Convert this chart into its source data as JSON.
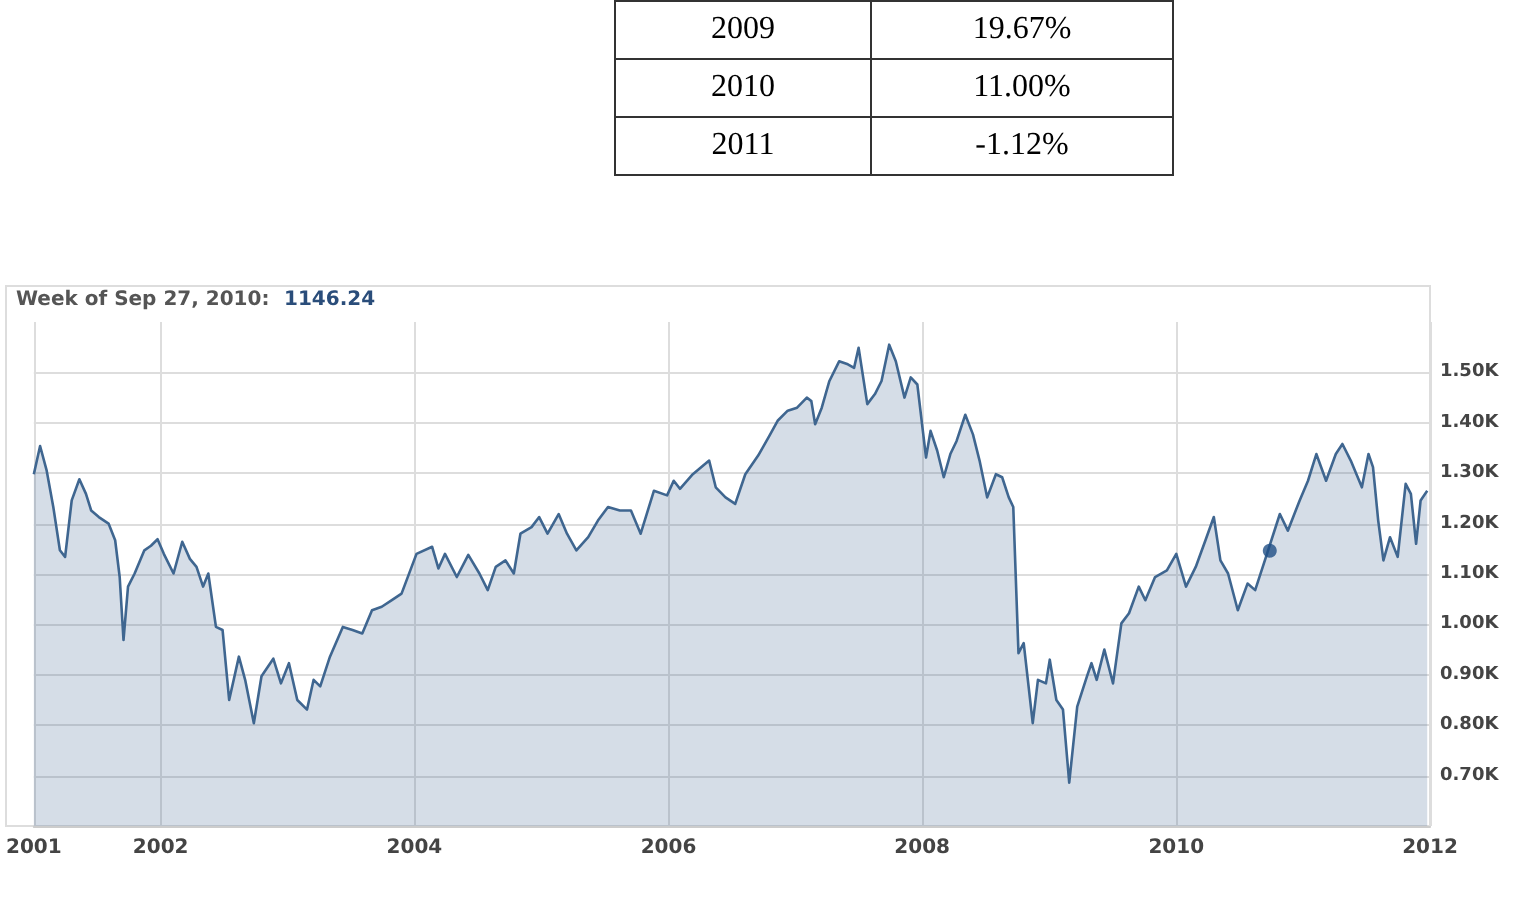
{
  "chart_data": [
    {
      "type": "other",
      "annotations": [
        "2009",
        "19.67%",
        "2010",
        "11.00%",
        "2011",
        "-1.12%"
      ]
    },
    {
      "type": "area",
      "title": "Week of Sep 27, 2010:",
      "annotations": [
        "1146.24"
      ],
      "series": [
        {
          "type": "scatter",
          "color": "#1f4f86",
          "x": [
            "2010-09-27"
          ],
          "values": [
            1146.24
          ]
        },
        {
          "color": "#3f6690",
          "x": [
            "2001-01-01",
            "2001-01-19",
            "2001-02-07",
            "2001-02-26",
            "2001-03-17",
            "2001-04-01",
            "2001-04-20",
            "2001-05-12",
            "2001-05-31",
            "2001-06-15",
            "2001-07-07",
            "2001-08-04",
            "2001-08-23",
            "2001-09-05",
            "2001-09-16",
            "2001-09-29",
            "2001-10-18",
            "2001-11-15",
            "2001-12-04",
            "2001-12-23",
            "2002-01-10",
            "2002-02-07",
            "2002-03-04",
            "2002-03-26",
            "2002-04-14",
            "2002-05-03",
            "2002-05-18",
            "2002-06-09",
            "2002-06-28",
            "2002-07-17",
            "2002-08-14",
            "2002-09-01",
            "2002-09-26",
            "2002-10-18",
            "2002-11-21",
            "2002-12-13",
            "2003-01-05",
            "2003-01-29",
            "2003-02-26",
            "2003-03-17",
            "2003-04-05",
            "2003-05-03",
            "2003-06-09",
            "2003-07-07",
            "2003-08-04",
            "2003-09-01",
            "2003-09-29",
            "2003-10-28",
            "2003-11-25",
            "2004-01-07",
            "2004-02-21",
            "2004-03-10",
            "2004-03-29",
            "2004-05-02",
            "2004-06-04",
            "2004-07-06",
            "2004-07-30",
            "2004-08-22",
            "2004-09-19",
            "2004-10-13",
            "2004-11-01",
            "2004-12-03",
            "2004-12-25",
            "2005-01-18",
            "2005-02-19",
            "2005-03-15",
            "2005-04-11",
            "2005-05-15",
            "2005-06-12",
            "2005-07-11",
            "2005-08-14",
            "2005-09-15",
            "2005-10-13",
            "2005-11-20",
            "2005-12-28",
            "2006-01-16",
            "2006-02-03",
            "2006-03-12",
            "2006-04-28",
            "2006-05-17",
            "2006-06-14",
            "2006-07-12",
            "2006-08-10",
            "2006-09-16",
            "2006-10-19",
            "2006-11-11",
            "2006-12-10",
            "2007-01-06",
            "2007-02-03",
            "2007-02-16",
            "2007-02-27",
            "2007-03-18",
            "2007-04-09",
            "2007-05-07",
            "2007-06-01",
            "2007-06-19",
            "2007-07-02",
            "2007-07-27",
            "2007-08-18",
            "2007-09-06",
            "2007-09-28",
            "2007-10-17",
            "2007-11-11",
            "2007-11-29",
            "2007-12-18",
            "2008-01-12",
            "2008-01-25",
            "2008-02-13",
            "2008-03-03",
            "2008-03-22",
            "2008-04-09",
            "2008-05-04",
            "2008-05-26",
            "2008-06-14",
            "2008-07-06",
            "2008-07-31",
            "2008-08-18",
            "2008-09-06",
            "2008-09-19",
            "2008-10-04",
            "2008-10-19",
            "2008-11-14",
            "2008-11-29",
            "2008-12-22",
            "2009-01-02",
            "2009-01-21",
            "2009-02-09",
            "2009-02-27",
            "2009-03-22",
            "2009-04-19",
            "2009-05-02",
            "2009-05-17",
            "2009-06-08",
            "2009-07-03",
            "2009-07-27",
            "2009-08-18",
            "2009-09-15",
            "2009-10-04",
            "2009-11-01",
            "2009-12-05",
            "2010-01-01",
            "2010-01-29",
            "2010-02-26",
            "2010-03-26",
            "2010-04-19",
            "2010-05-08",
            "2010-05-30",
            "2010-06-27",
            "2010-07-25",
            "2010-08-16",
            "2010-09-19",
            "2010-10-26",
            "2010-11-18",
            "2010-12-22",
            "2011-01-15",
            "2011-02-08",
            "2011-03-08",
            "2011-04-05",
            "2011-04-24",
            "2011-05-18",
            "2011-06-19",
            "2011-07-08",
            "2011-07-21",
            "2011-08-05",
            "2011-08-20",
            "2011-09-08",
            "2011-09-30",
            "2011-10-23",
            "2011-11-07",
            "2011-11-22",
            "2011-12-05",
            "2011-12-24"
          ],
          "values": [
            1298,
            1354,
            1305,
            1233,
            1147,
            1134,
            1246,
            1288,
            1259,
            1226,
            1213,
            1200,
            1167,
            1094,
            969,
            1075,
            1101,
            1147,
            1156,
            1169,
            1140,
            1101,
            1164,
            1130,
            1114,
            1075,
            1101,
            995,
            989,
            850,
            936,
            890,
            804,
            897,
            932,
            883,
            923,
            850,
            831,
            890,
            877,
            936,
            995,
            989,
            982,
            1028,
            1035,
            1048,
            1061,
            1140,
            1154,
            1111,
            1140,
            1094,
            1138,
            1101,
            1068,
            1114,
            1127,
            1101,
            1180,
            1193,
            1213,
            1180,
            1219,
            1180,
            1147,
            1173,
            1206,
            1233,
            1226,
            1226,
            1180,
            1265,
            1256,
            1285,
            1269,
            1298,
            1325,
            1272,
            1252,
            1239,
            1298,
            1335,
            1375,
            1404,
            1424,
            1430,
            1450,
            1443,
            1397,
            1430,
            1483,
            1522,
            1516,
            1509,
            1549,
            1437,
            1457,
            1483,
            1555,
            1522,
            1450,
            1490,
            1476,
            1331,
            1384,
            1345,
            1292,
            1338,
            1364,
            1416,
            1377,
            1325,
            1252,
            1298,
            1292,
            1252,
            1233,
            943,
            963,
            804,
            890,
            883,
            930,
            850,
            831,
            686,
            837,
            897,
            923,
            890,
            950,
            883,
            1002,
            1022,
            1075,
            1048,
            1094,
            1107,
            1140,
            1075,
            1114,
            1167,
            1213,
            1127,
            1101,
            1028,
            1081,
            1068,
            1140,
            1219,
            1186,
            1246,
            1285,
            1338,
            1285,
            1338,
            1358,
            1325,
            1272,
            1338,
            1312,
            1206,
            1127,
            1173,
            1134,
            1279,
            1259,
            1160,
            1246,
            1265
          ]
        }
      ],
      "xlim": [
        "2001-01-01",
        "2012-01-01"
      ],
      "xticks": [
        "2001",
        "2002",
        "2004",
        "2006",
        "2008",
        "2010",
        "2012"
      ],
      "ylim": [
        600,
        1600
      ],
      "yticks": [
        {
          "value": 700,
          "label": "0.70K"
        },
        {
          "value": 800,
          "label": "0.80K"
        },
        {
          "value": 900,
          "label": "0.90K"
        },
        {
          "value": 1000,
          "label": "1.00K"
        },
        {
          "value": 1100,
          "label": "1.10K"
        },
        {
          "value": 1200,
          "label": "1.20K"
        },
        {
          "value": 1300,
          "label": "1.30K"
        },
        {
          "value": 1400,
          "label": "1.40K"
        },
        {
          "value": 1500,
          "label": "1.50K"
        }
      ],
      "grid": true
    }
  ]
}
